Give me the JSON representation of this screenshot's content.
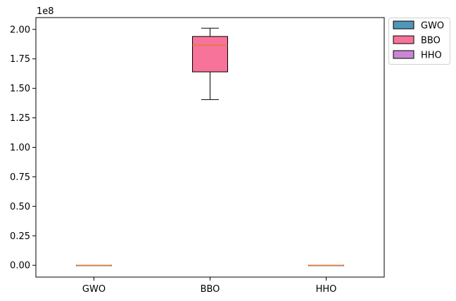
{
  "chart_data": {
    "type": "box",
    "offset_label": "1e8",
    "categories": [
      "GWO",
      "BBO",
      "HHO"
    ],
    "ylim": [
      -0.1,
      2.1
    ],
    "yticks": [
      "0.00",
      "0.25",
      "0.50",
      "0.75",
      "1.00",
      "1.25",
      "1.50",
      "1.75",
      "2.00"
    ],
    "ytick_values": [
      0,
      0.25,
      0.5,
      0.75,
      1.0,
      1.25,
      1.5,
      1.75,
      2.0
    ],
    "grid": false,
    "legend_placement": "outside-top-right",
    "series": [
      {
        "name": "GWO",
        "color": "#4f97b8",
        "median_color": "#e07b39",
        "whisker_low": 0.0,
        "q1": 0.0,
        "median": 0.0,
        "q3": 0.0,
        "whisker_high": 0.0
      },
      {
        "name": "BBO",
        "color": "#f7739a",
        "median_color": "#e07b39",
        "whisker_low": 1.405,
        "q1": 1.64,
        "median": 1.865,
        "q3": 1.94,
        "whisker_high": 2.01
      },
      {
        "name": "HHO",
        "color": "#c987d3",
        "median_color": "#e07b39",
        "whisker_low": 0.0,
        "q1": 0.0,
        "median": 0.0,
        "q3": 0.0,
        "whisker_high": 0.0
      }
    ]
  }
}
